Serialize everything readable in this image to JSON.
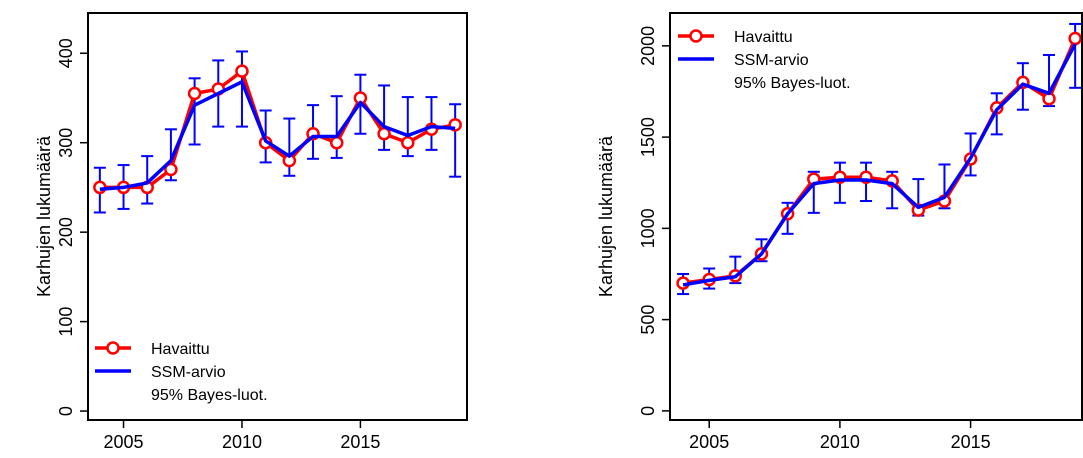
{
  "colors": {
    "observed": "#ff0000",
    "estimate": "#0000ff",
    "interval": "#0000ff",
    "axis": "#000000"
  },
  "chart_data": [
    {
      "type": "line",
      "xlabel": "",
      "ylabel": "Karhujen lukumäärä",
      "xlim": [
        2003.5,
        2019.5
      ],
      "ylim": [
        -10,
        445
      ],
      "xticks": [
        2005,
        2010,
        2015
      ],
      "yticks": [
        0,
        100,
        200,
        300,
        400
      ],
      "legend_position": "bottom-left",
      "legend": [
        {
          "label": "Havaittu",
          "style": "line-circle",
          "color": "#ff0000"
        },
        {
          "label": "SSM-arvio",
          "style": "line",
          "color": "#0000ff"
        },
        {
          "label": "95% Bayes-luot.",
          "style": "none",
          "color": "#0000ff"
        }
      ],
      "x": [
        2004,
        2005,
        2006,
        2007,
        2008,
        2009,
        2010,
        2011,
        2012,
        2013,
        2014,
        2015,
        2016,
        2017,
        2018,
        2019
      ],
      "series": [
        {
          "name": "Havaittu",
          "values": [
            250,
            250,
            250,
            270,
            355,
            360,
            380,
            300,
            280,
            310,
            300,
            350,
            310,
            300,
            315,
            320
          ]
        },
        {
          "name": "SSM-arvio",
          "values": [
            248,
            250,
            255,
            280,
            342,
            355,
            368,
            302,
            285,
            307,
            307,
            345,
            318,
            308,
            318,
            316
          ]
        }
      ],
      "intervals": {
        "name": "95% Bayes-luot.",
        "lower": [
          222,
          226,
          232,
          258,
          298,
          318,
          318,
          278,
          263,
          282,
          283,
          310,
          292,
          285,
          292,
          262
        ],
        "upper": [
          272,
          275,
          285,
          315,
          372,
          392,
          402,
          336,
          327,
          342,
          352,
          376,
          364,
          351,
          351,
          343
        ]
      }
    },
    {
      "type": "line",
      "xlabel": "",
      "ylabel": "Karhujen lukumäärä",
      "xlim": [
        2003.5,
        2019.3
      ],
      "ylim": [
        -50,
        2180
      ],
      "xticks": [
        2005,
        2010,
        2015
      ],
      "yticks": [
        0,
        500,
        1000,
        1500,
        2000
      ],
      "legend_position": "top-left",
      "legend": [
        {
          "label": "Havaittu",
          "style": "line-circle",
          "color": "#ff0000"
        },
        {
          "label": "SSM-arvio",
          "style": "line",
          "color": "#0000ff"
        },
        {
          "label": "95% Bayes-luot.",
          "style": "none",
          "color": "#0000ff"
        }
      ],
      "x": [
        2004,
        2005,
        2006,
        2007,
        2008,
        2009,
        2010,
        2011,
        2012,
        2013,
        2014,
        2015,
        2016,
        2017,
        2018,
        2019
      ],
      "series": [
        {
          "name": "Havaittu",
          "values": [
            700,
            720,
            740,
            860,
            1080,
            1270,
            1280,
            1280,
            1260,
            1100,
            1150,
            1380,
            1660,
            1800,
            1710,
            2040
          ]
        },
        {
          "name": "SSM-arvio",
          "values": [
            690,
            715,
            735,
            860,
            1080,
            1245,
            1265,
            1265,
            1245,
            1115,
            1170,
            1385,
            1650,
            1790,
            1740,
            2010
          ]
        }
      ],
      "intervals": {
        "name": "95% Bayes-luot.",
        "lower": [
          640,
          670,
          700,
          820,
          970,
          1085,
          1140,
          1150,
          1110,
          1070,
          1110,
          1290,
          1515,
          1650,
          1670,
          1770
        ],
        "upper": [
          750,
          780,
          845,
          940,
          1140,
          1310,
          1360,
          1360,
          1310,
          1270,
          1350,
          1520,
          1740,
          1905,
          1950,
          2120
        ]
      }
    }
  ]
}
